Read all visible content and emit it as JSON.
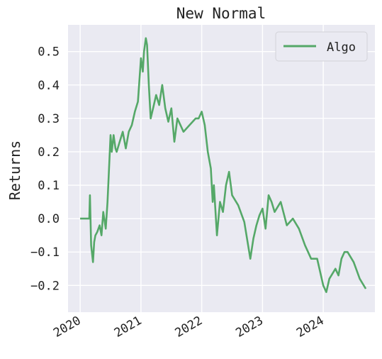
{
  "chart_data": {
    "type": "line",
    "title": "New Normal",
    "xlabel": "",
    "ylabel": "Returns",
    "xlim": [
      2019.8,
      2024.85
    ],
    "ylim": [
      -0.28,
      0.58
    ],
    "x_ticks": [
      2020,
      2021,
      2022,
      2023,
      2024
    ],
    "x_tick_labels": [
      "2020",
      "2021",
      "2022",
      "2023",
      "2024"
    ],
    "y_ticks": [
      -0.2,
      -0.1,
      0.0,
      0.1,
      0.2,
      0.3,
      0.4,
      0.5
    ],
    "y_tick_labels": [
      "−0.2",
      "−0.1",
      "0.0",
      "0.1",
      "0.2",
      "0.3",
      "0.4",
      "0.5"
    ],
    "grid": true,
    "legend_position": "top-right",
    "series": [
      {
        "name": "Algo",
        "color": "#55a868",
        "x": [
          2020.0,
          2020.15,
          2020.16,
          2020.18,
          2020.21,
          2020.23,
          2020.25,
          2020.28,
          2020.32,
          2020.35,
          2020.38,
          2020.42,
          2020.45,
          2020.5,
          2020.52,
          2020.55,
          2020.58,
          2020.6,
          2020.65,
          2020.7,
          2020.75,
          2020.8,
          2020.85,
          2020.9,
          2020.95,
          2021.0,
          2021.03,
          2021.05,
          2021.08,
          2021.1,
          2021.13,
          2021.16,
          2021.2,
          2021.25,
          2021.3,
          2021.35,
          2021.4,
          2021.45,
          2021.5,
          2021.55,
          2021.6,
          2021.65,
          2021.7,
          2021.8,
          2021.9,
          2021.95,
          2022.0,
          2022.05,
          2022.1,
          2022.15,
          2022.18,
          2022.2,
          2022.25,
          2022.3,
          2022.35,
          2022.4,
          2022.45,
          2022.5,
          2022.6,
          2022.7,
          2022.8,
          2022.85,
          2022.9,
          2022.95,
          2023.0,
          2023.05,
          2023.1,
          2023.15,
          2023.2,
          2023.3,
          2023.4,
          2023.5,
          2023.6,
          2023.7,
          2023.75,
          2023.8,
          2023.9,
          2024.0,
          2024.05,
          2024.1,
          2024.2,
          2024.25,
          2024.3,
          2024.35,
          2024.4,
          2024.5,
          2024.6,
          2024.7
        ],
        "y": [
          0.0,
          0.0,
          0.07,
          -0.08,
          -0.13,
          -0.07,
          -0.05,
          -0.04,
          -0.02,
          -0.05,
          0.02,
          -0.03,
          0.05,
          0.25,
          0.2,
          0.25,
          0.21,
          0.2,
          0.23,
          0.26,
          0.21,
          0.26,
          0.28,
          0.32,
          0.35,
          0.48,
          0.44,
          0.5,
          0.54,
          0.52,
          0.4,
          0.3,
          0.33,
          0.37,
          0.34,
          0.4,
          0.33,
          0.29,
          0.33,
          0.23,
          0.3,
          0.28,
          0.26,
          0.28,
          0.3,
          0.3,
          0.32,
          0.28,
          0.2,
          0.15,
          0.05,
          0.1,
          -0.05,
          0.05,
          0.02,
          0.1,
          0.14,
          0.07,
          0.04,
          -0.01,
          -0.12,
          -0.06,
          -0.02,
          0.01,
          0.03,
          -0.03,
          0.07,
          0.05,
          0.02,
          0.05,
          -0.02,
          0.0,
          -0.03,
          -0.08,
          -0.1,
          -0.12,
          -0.12,
          -0.2,
          -0.22,
          -0.18,
          -0.15,
          -0.17,
          -0.12,
          -0.1,
          -0.1,
          -0.13,
          -0.18,
          -0.21
        ]
      }
    ]
  }
}
